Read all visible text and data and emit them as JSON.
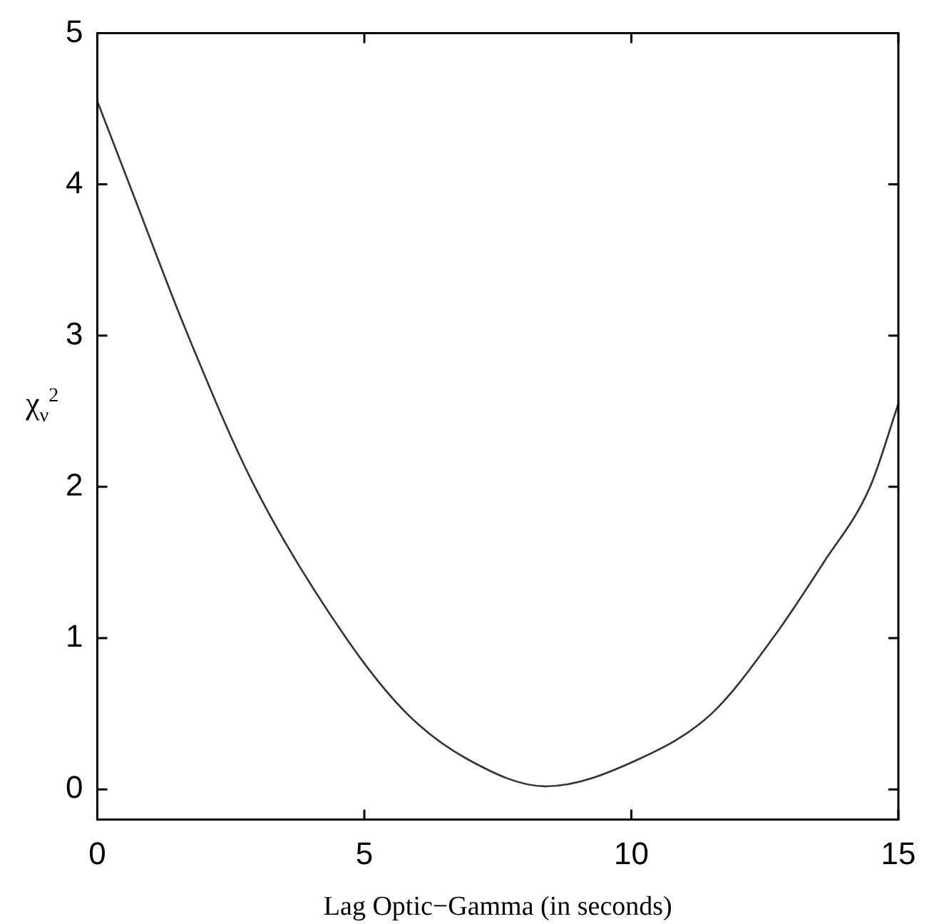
{
  "chart_data": {
    "type": "line",
    "xlabel": "Lag Optic−Gamma (in seconds)",
    "ylabel": "χ$_{ν}$$^{2}$",
    "x": [
      0,
      0.6,
      1.7,
      2.95,
      4.66,
      5.8,
      6.93,
      8.4,
      10.14,
      11.5,
      12.65,
      13.6,
      14.47,
      15
    ],
    "series": [
      {
        "color": "#333333",
        "values": [
          4.55,
          4,
          3,
          2,
          1,
          0.5,
          0.2,
          0.02,
          0.2,
          0.5,
          1,
          1.5,
          2,
          2.55
        ]
      }
    ],
    "xlim": [
      0,
      15
    ],
    "xticks": [
      0,
      5,
      10,
      15
    ],
    "ylim": [
      -0.2,
      5
    ],
    "yticks": [
      0,
      1,
      2,
      3,
      4,
      5
    ],
    "grid": false,
    "legend": false,
    "marker": "none",
    "line_style": "solid"
  }
}
